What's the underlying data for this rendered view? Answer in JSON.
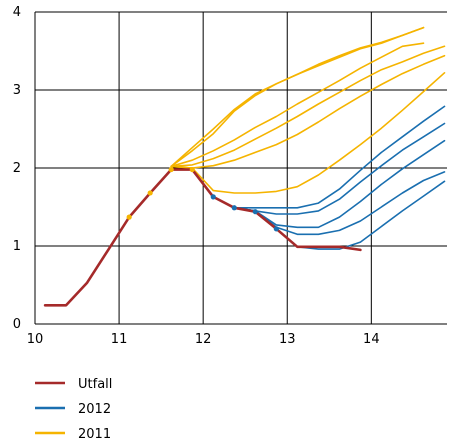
{
  "chart_data": {
    "type": "line",
    "title": "",
    "xlabel": "",
    "ylabel": "",
    "xlim": [
      10,
      14.9
    ],
    "ylim": [
      0,
      4
    ],
    "x_ticks": [
      "10",
      "11",
      "12",
      "13",
      "14"
    ],
    "y_ticks": [
      "0",
      "1",
      "2",
      "3",
      "4"
    ],
    "grid": true,
    "legend_position": "bottom-left",
    "colors": {
      "Utfall": "#a52a2a",
      "2012": "#1a6fb0",
      "2011": "#f5b400"
    },
    "series": [
      {
        "name": "Utfall",
        "group": "Utfall",
        "x": [
          10.12,
          10.37,
          10.62,
          10.87,
          11.12,
          11.37,
          11.62,
          11.87,
          12.12,
          12.37,
          12.62,
          12.87,
          13.12,
          13.37,
          13.62,
          13.87
        ],
        "y": [
          0.24,
          0.24,
          0.53,
          0.95,
          1.37,
          1.68,
          1.98,
          1.98,
          1.63,
          1.49,
          1.44,
          1.22,
          0.99,
          0.99,
          0.99,
          0.95
        ]
      },
      {
        "group": "2012",
        "x": [
          12.12,
          12.37,
          12.62,
          12.87,
          13.12,
          13.37,
          13.62,
          13.87,
          14.12,
          14.37,
          14.62,
          14.87
        ],
        "y": [
          1.63,
          1.49,
          1.49,
          1.49,
          1.49,
          1.55,
          1.73,
          1.97,
          2.2,
          2.4,
          2.6,
          2.79
        ]
      },
      {
        "group": "2012",
        "x": [
          12.12,
          12.37,
          12.62,
          12.87,
          13.12,
          13.37,
          13.62,
          13.87,
          14.12,
          14.37,
          14.62,
          14.87
        ],
        "y": [
          1.63,
          1.49,
          1.45,
          1.41,
          1.41,
          1.45,
          1.6,
          1.82,
          2.03,
          2.23,
          2.4,
          2.57
        ]
      },
      {
        "group": "2012",
        "x": [
          12.12,
          12.37,
          12.62,
          12.87,
          13.12,
          13.37,
          13.62,
          13.87,
          14.12,
          14.37,
          14.62,
          14.87
        ],
        "y": [
          1.63,
          1.49,
          1.45,
          1.27,
          1.24,
          1.24,
          1.37,
          1.57,
          1.79,
          1.99,
          2.17,
          2.35
        ]
      },
      {
        "group": "2012",
        "x": [
          12.12,
          12.37,
          12.62,
          12.87,
          13.12,
          13.37,
          13.62,
          13.87,
          14.12,
          14.37,
          14.62,
          14.87
        ],
        "y": [
          1.63,
          1.49,
          1.45,
          1.24,
          1.15,
          1.15,
          1.2,
          1.32,
          1.5,
          1.68,
          1.84,
          1.95
        ]
      },
      {
        "group": "2012",
        "x": [
          12.12,
          12.37,
          12.62,
          12.87,
          13.12,
          13.37,
          13.62,
          13.87,
          14.12,
          14.37,
          14.62,
          14.87
        ],
        "y": [
          1.63,
          1.49,
          1.45,
          1.22,
          0.99,
          0.96,
          0.96,
          1.05,
          1.25,
          1.45,
          1.64,
          1.83
        ]
      },
      {
        "group": "2011",
        "x": [
          11.62,
          11.87,
          12.12,
          12.37,
          12.62,
          12.87,
          13.12,
          13.37,
          13.62,
          13.87,
          14.12,
          14.37,
          14.62
        ],
        "y": [
          2.02,
          2.26,
          2.5,
          2.75,
          2.95,
          3.08,
          3.2,
          3.33,
          3.44,
          3.54,
          3.61,
          3.7,
          3.8
        ]
      },
      {
        "group": "2011",
        "x": [
          11.62,
          11.87,
          12.12,
          12.37,
          12.62,
          12.87,
          13.12,
          13.37,
          13.62,
          13.87,
          14.12,
          14.37,
          14.62
        ],
        "y": [
          2.02,
          2.22,
          2.44,
          2.73,
          2.93,
          3.08,
          3.2,
          3.31,
          3.42,
          3.53,
          3.6,
          3.7,
          3.8
        ]
      },
      {
        "group": "2011",
        "x": [
          11.62,
          11.87,
          12.12,
          12.37,
          12.62,
          12.87,
          13.12,
          13.37,
          13.62,
          13.87,
          14.12,
          14.37,
          14.62
        ],
        "y": [
          2.02,
          2.1,
          2.22,
          2.36,
          2.52,
          2.66,
          2.82,
          2.97,
          3.12,
          3.28,
          3.42,
          3.56,
          3.6
        ]
      },
      {
        "group": "2011",
        "x": [
          11.62,
          11.87,
          12.12,
          12.37,
          12.62,
          12.87,
          13.12,
          13.37,
          13.62,
          13.87,
          14.12,
          14.37,
          14.62,
          14.87
        ],
        "y": [
          2.02,
          2.04,
          2.12,
          2.23,
          2.37,
          2.51,
          2.66,
          2.82,
          2.97,
          3.12,
          3.26,
          3.36,
          3.47,
          3.56
        ]
      },
      {
        "group": "2011",
        "x": [
          11.62,
          11.87,
          12.12,
          12.37,
          12.62,
          12.87,
          13.12,
          13.37,
          13.62,
          13.87,
          14.12,
          14.37,
          14.62,
          14.87
        ],
        "y": [
          2.02,
          2.0,
          2.03,
          2.1,
          2.2,
          2.3,
          2.43,
          2.59,
          2.76,
          2.92,
          3.07,
          3.21,
          3.33,
          3.44
        ]
      },
      {
        "group": "2011",
        "x": [
          11.62,
          11.87,
          12.12,
          12.37,
          12.62,
          12.87,
          13.12,
          13.37,
          13.62,
          13.87,
          14.12,
          14.37,
          14.62,
          14.87
        ],
        "y": [
          2.02,
          2.0,
          1.71,
          1.68,
          1.68,
          1.7,
          1.76,
          1.91,
          2.1,
          2.3,
          2.51,
          2.74,
          2.98,
          3.22
        ]
      }
    ],
    "legend": [
      {
        "label": "Utfall",
        "group": "Utfall"
      },
      {
        "label": "2012",
        "group": "2012"
      },
      {
        "label": "2011",
        "group": "2011"
      }
    ]
  }
}
